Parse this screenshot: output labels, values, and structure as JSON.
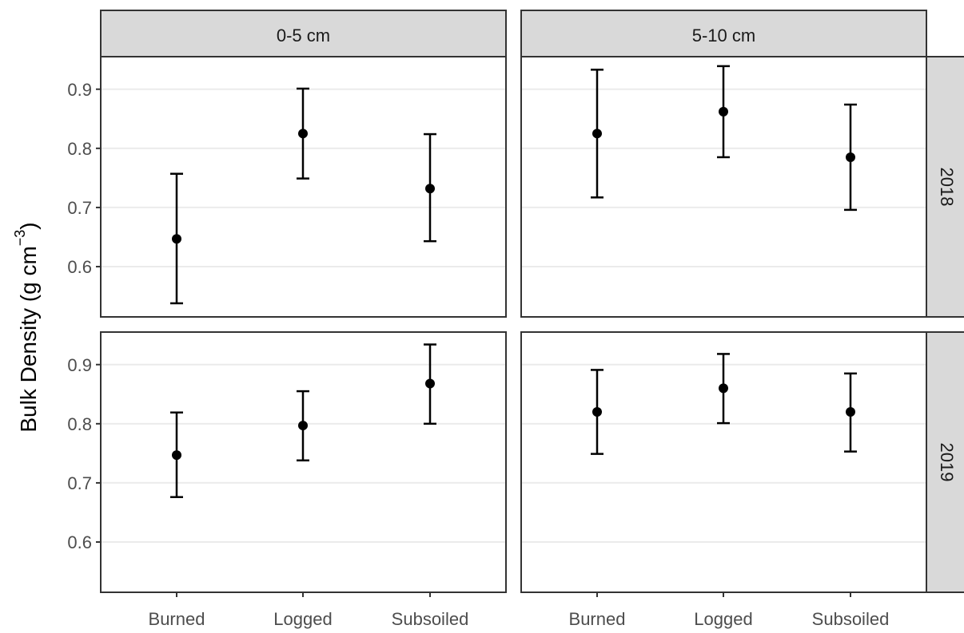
{
  "chart_data": {
    "type": "scatter",
    "subtype": "point with error bars, faceted grid",
    "ylabel": {
      "text": "Bulk Density (g  cm",
      "superscript": "−3",
      "close": ")"
    },
    "categories": [
      "Burned",
      "Logged",
      "Subsoiled"
    ],
    "column_facets": [
      "0-5 cm",
      "5-10 cm"
    ],
    "row_facets": [
      "2018",
      "2019"
    ],
    "ylim": [
      0.515,
      0.955
    ],
    "yticks": [
      0.6,
      0.7,
      0.8,
      0.9
    ],
    "ytick_labels": [
      "0.6",
      "0.7",
      "0.8",
      "0.9"
    ],
    "grid": "horizontal major",
    "legend": "none",
    "panels": [
      {
        "row": "2018",
        "col": "0-5 cm",
        "points": [
          {
            "x": "Burned",
            "mean": 0.647,
            "lower": 0.538,
            "upper": 0.757
          },
          {
            "x": "Logged",
            "mean": 0.825,
            "lower": 0.749,
            "upper": 0.901
          },
          {
            "x": "Subsoiled",
            "mean": 0.732,
            "lower": 0.643,
            "upper": 0.824
          }
        ]
      },
      {
        "row": "2018",
        "col": "5-10 cm",
        "points": [
          {
            "x": "Burned",
            "mean": 0.825,
            "lower": 0.717,
            "upper": 0.933
          },
          {
            "x": "Logged",
            "mean": 0.862,
            "lower": 0.785,
            "upper": 0.939
          },
          {
            "x": "Subsoiled",
            "mean": 0.785,
            "lower": 0.696,
            "upper": 0.874
          }
        ]
      },
      {
        "row": "2019",
        "col": "0-5 cm",
        "points": [
          {
            "x": "Burned",
            "mean": 0.747,
            "lower": 0.676,
            "upper": 0.819
          },
          {
            "x": "Logged",
            "mean": 0.797,
            "lower": 0.738,
            "upper": 0.855
          },
          {
            "x": "Subsoiled",
            "mean": 0.868,
            "lower": 0.8,
            "upper": 0.934
          }
        ]
      },
      {
        "row": "2019",
        "col": "5-10 cm",
        "points": [
          {
            "x": "Burned",
            "mean": 0.82,
            "lower": 0.749,
            "upper": 0.891
          },
          {
            "x": "Logged",
            "mean": 0.86,
            "lower": 0.801,
            "upper": 0.918
          },
          {
            "x": "Subsoiled",
            "mean": 0.82,
            "lower": 0.753,
            "upper": 0.885
          }
        ]
      }
    ],
    "colors": {
      "point": "#000000",
      "strip_fill": "#d9d9d9",
      "panel_border": "#333333",
      "grid": "#ebebeb",
      "tick_label": "#4d4d4d"
    }
  }
}
